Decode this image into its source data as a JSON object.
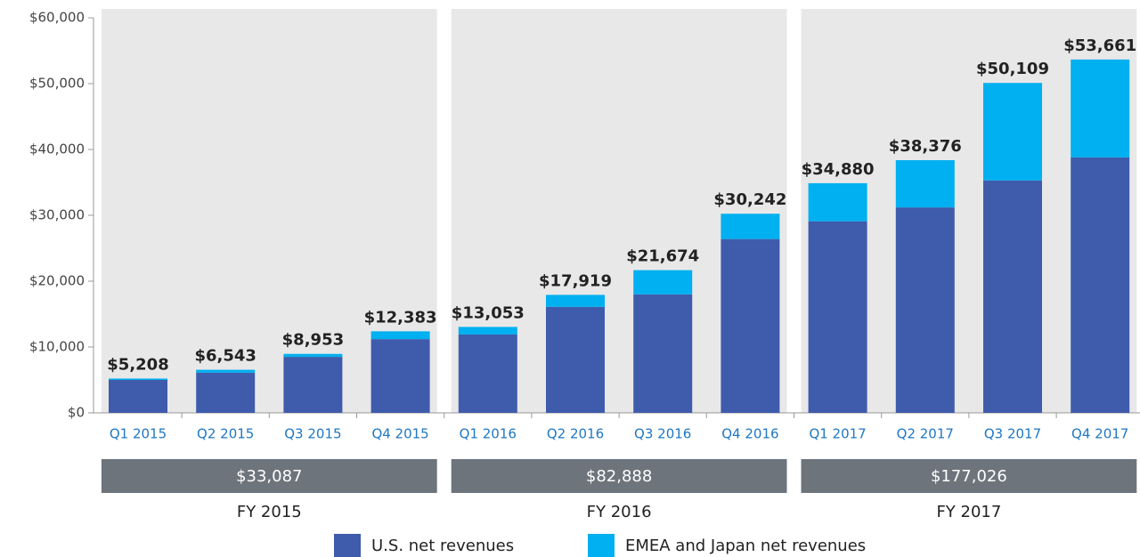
{
  "chart_data": {
    "type": "stacked_bar",
    "categories": [
      "Q1 2015",
      "Q2 2015",
      "Q3 2015",
      "Q4 2015",
      "Q1 2016",
      "Q2 2016",
      "Q3 2016",
      "Q4 2016",
      "Q1 2017",
      "Q2 2017",
      "Q3 2017",
      "Q4 2017"
    ],
    "series": [
      {
        "name": "U.S. net revenues",
        "color": "#3f5bac",
        "values": [
          5000,
          6100,
          8500,
          11200,
          11900,
          16100,
          18000,
          26400,
          29100,
          31200,
          35300,
          38800
        ]
      },
      {
        "name": "EMEA and Japan net revenues",
        "color": "#00b0f0",
        "values": [
          208,
          443,
          453,
          1183,
          1153,
          1819,
          3674,
          3842,
          5780,
          7176,
          14809,
          14861
        ]
      }
    ],
    "totals": {
      "values": [
        5208,
        6543,
        8953,
        12383,
        13053,
        17919,
        21674,
        30242,
        34880,
        38376,
        50109,
        53661
      ],
      "value_labels": [
        "$5,208",
        "$6,543",
        "$8,953",
        "$12,383",
        "$13,053",
        "$17,919",
        "$21,674",
        "$30,242",
        "$34,880",
        "$38,376",
        "$50,109",
        "$53,661"
      ]
    },
    "groups": [
      {
        "name": "FY 2015",
        "value": 33087,
        "label": "$33,087"
      },
      {
        "name": "FY 2016",
        "value": 82888,
        "label": "$82,888"
      },
      {
        "name": "FY 2017",
        "value": 177026,
        "label": "$177,026"
      }
    ],
    "ylim": [
      0,
      60000
    ],
    "yticks": [
      {
        "value": 0,
        "label": "$0"
      },
      {
        "value": 10000,
        "label": "$10,000"
      },
      {
        "value": 20000,
        "label": "$20,000"
      },
      {
        "value": 30000,
        "label": "$30,000"
      },
      {
        "value": 40000,
        "label": "$40,000"
      },
      {
        "value": 50000,
        "label": "$50,000"
      },
      {
        "value": 60000,
        "label": "$60,000"
      }
    ]
  }
}
